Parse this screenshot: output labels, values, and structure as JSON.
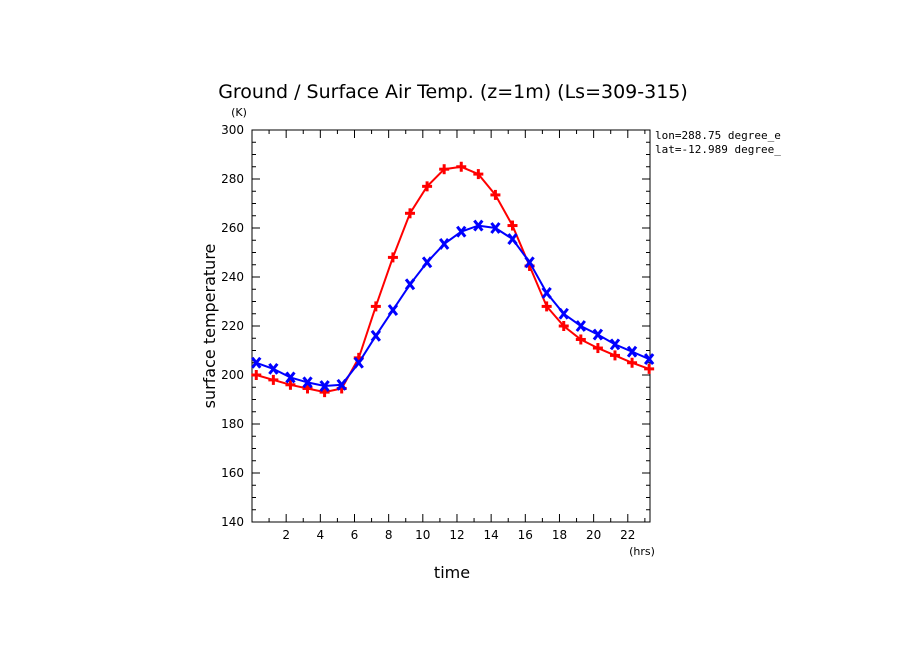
{
  "chart_data": {
    "type": "line",
    "title": "Ground / Surface Air Temp. (z=1m) (Ls=309-315)",
    "xlabel": "time",
    "ylabel": "surface temperature",
    "xunit": "(hrs)",
    "yunit": "(K)",
    "xlim": [
      0,
      23.3
    ],
    "ylim": [
      140,
      300
    ],
    "xticks": [
      2,
      4,
      6,
      8,
      10,
      12,
      14,
      16,
      18,
      20,
      22
    ],
    "yticks": [
      140,
      160,
      180,
      200,
      220,
      240,
      260,
      280,
      300
    ],
    "annotations": [
      "lon=288.75 degree_e",
      "lat=-12.989 degree_"
    ],
    "grid": false,
    "series": [
      {
        "color": "#ff0000",
        "marker": "plus",
        "x": [
          0.25,
          1.25,
          2.25,
          3.25,
          4.25,
          5.25,
          6.25,
          7.25,
          8.25,
          9.25,
          10.25,
          11.25,
          12.25,
          13.25,
          14.25,
          15.25,
          16.25,
          17.25,
          18.25,
          19.25,
          20.25,
          21.25,
          22.25,
          23.25
        ],
        "values": [
          200,
          198,
          196,
          194.5,
          193,
          194.5,
          207,
          228,
          248,
          266,
          277,
          284,
          285,
          282,
          273.5,
          261,
          244.5,
          228,
          220,
          214.5,
          211,
          208,
          205,
          202.5
        ]
      },
      {
        "color": "#0000ff",
        "marker": "x",
        "x": [
          0.25,
          1.25,
          2.25,
          3.25,
          4.25,
          5.25,
          6.25,
          7.25,
          8.25,
          9.25,
          10.25,
          11.25,
          12.25,
          13.25,
          14.25,
          15.25,
          16.25,
          17.25,
          18.25,
          19.25,
          20.25,
          21.25,
          22.25,
          23.25
        ],
        "values": [
          205,
          202.5,
          199,
          197,
          195.5,
          196,
          205,
          216,
          226.5,
          237,
          246,
          253.5,
          258.5,
          261,
          260,
          255.5,
          246,
          233.5,
          225,
          220,
          216.5,
          212.5,
          209.5,
          206.5
        ]
      }
    ]
  }
}
